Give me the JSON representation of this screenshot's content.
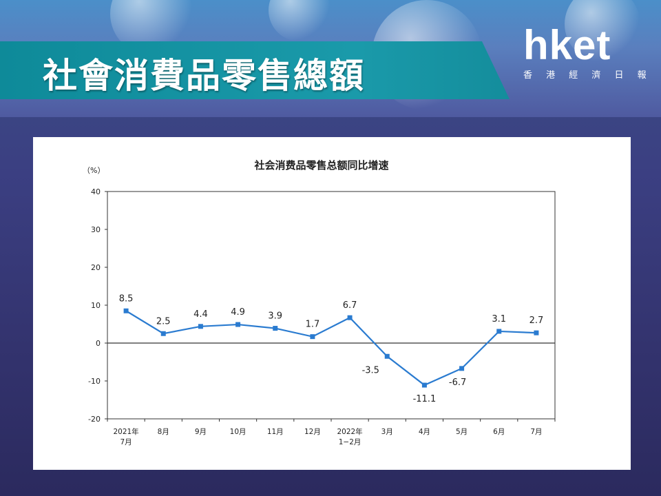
{
  "slide_title": "社會消費品零售總額",
  "logo": {
    "name": "hket",
    "subtitle": "香 港 經 濟 日 報"
  },
  "chart_data": {
    "type": "line",
    "title": "社会消费品零售总额同比增速",
    "ylabel": "（%）",
    "ylim": [
      -20,
      40
    ],
    "yticks": [
      40,
      30,
      20,
      10,
      0,
      -10,
      -20
    ],
    "categories": [
      "2021年\n7月",
      "8月",
      "9月",
      "10月",
      "11月",
      "12月",
      "2022年\n1−2月",
      "3月",
      "4月",
      "5月",
      "6月",
      "7月"
    ],
    "series": [
      {
        "values": [
          8.5,
          2.5,
          4.4,
          4.9,
          3.9,
          1.7,
          6.7,
          -3.5,
          -11.1,
          -6.7,
          3.1,
          2.7
        ]
      }
    ],
    "data_labels": [
      "8.5",
      "2.5",
      "4.4",
      "4.9",
      "3.9",
      "1.7",
      "6.7",
      "-3.5",
      "-11.1",
      "-6.7",
      "3.1",
      "2.7"
    ],
    "line_color": "#2a7bd0",
    "grid": false,
    "legend": "none"
  }
}
